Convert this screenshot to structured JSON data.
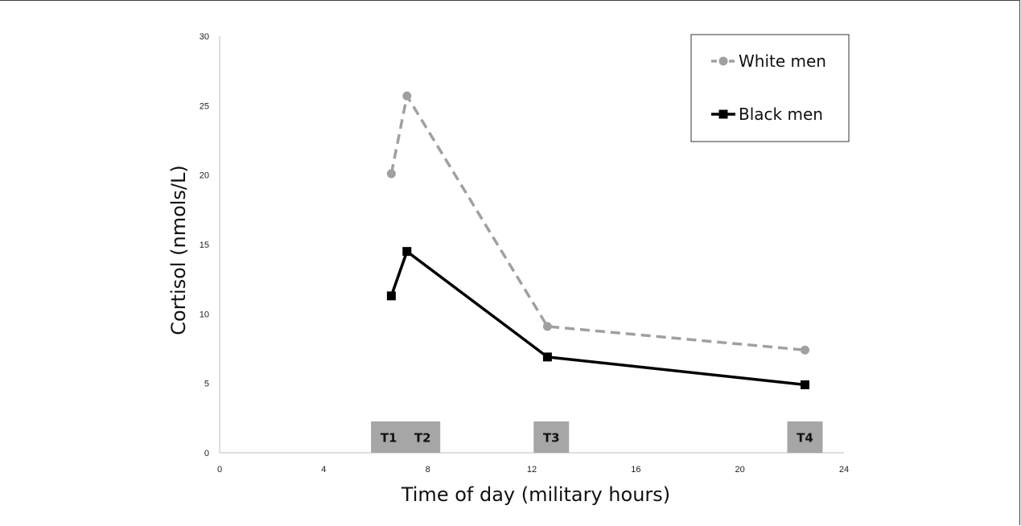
{
  "chart_data": {
    "type": "line",
    "title": "",
    "xlabel": "Time of day (military hours)",
    "ylabel": "Cortisol (nmols/L)",
    "xlim": [
      0,
      24
    ],
    "ylim": [
      0,
      30
    ],
    "x_ticks": [
      "0",
      "4",
      "8",
      "12",
      "16",
      "20",
      "24"
    ],
    "y_ticks": [
      "0",
      "5",
      "10",
      "15",
      "20",
      "25",
      "30"
    ],
    "grid": false,
    "legend_position": "top-right",
    "series": [
      {
        "name": "White men",
        "color": "#a0a0a0",
        "line_style": "dashed",
        "marker": "circle",
        "x": [
          6.6,
          7.2,
          12.6,
          22.5
        ],
        "y": [
          20.1,
          25.7,
          9.1,
          7.4
        ]
      },
      {
        "name": "Black men",
        "color": "#000000",
        "line_style": "solid",
        "marker": "square",
        "x": [
          6.6,
          7.2,
          12.6,
          22.5
        ],
        "y": [
          11.3,
          14.5,
          6.9,
          4.9
        ]
      }
    ],
    "time_markers": [
      {
        "label": "T1",
        "x": 6.5
      },
      {
        "label": "T2",
        "x": 7.8
      },
      {
        "label": "T3",
        "x": 12.75
      },
      {
        "label": "T4",
        "x": 22.5
      }
    ],
    "marker_color": "#a6a6a6"
  }
}
